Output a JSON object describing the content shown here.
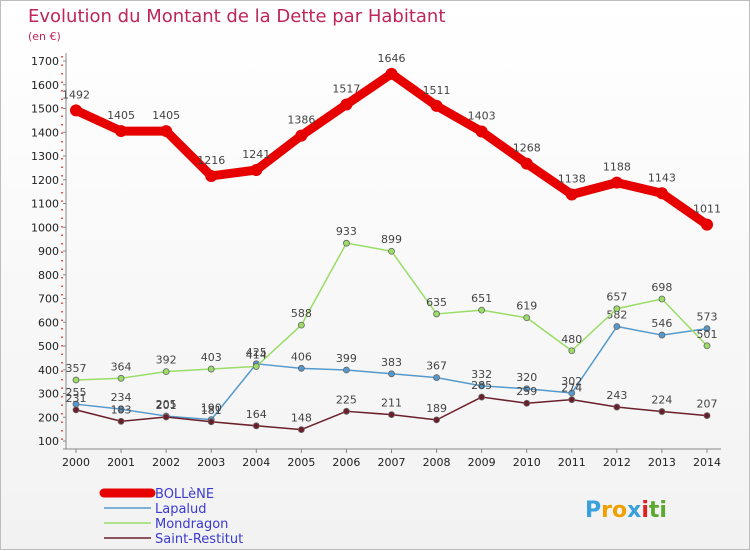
{
  "chart_data": {
    "type": "line",
    "title": "Evolution du Montant de la Dette par Habitant",
    "subtitle": "(en €)",
    "categories": [
      "2000",
      "2001",
      "2002",
      "2003",
      "2004",
      "2005",
      "2006",
      "2007",
      "2008",
      "2009",
      "2010",
      "2011",
      "2012",
      "2013",
      "2014"
    ],
    "ylim": [
      100,
      1700
    ],
    "yticks": [
      100,
      200,
      300,
      400,
      500,
      600,
      700,
      800,
      900,
      1000,
      1100,
      1200,
      1300,
      1400,
      1500,
      1600,
      1700
    ],
    "grid": false,
    "legend_position": "bottom-left",
    "series": [
      {
        "name": "BOLLèNE",
        "color": "#e60000",
        "values": [
          1492,
          1405,
          1405,
          1216,
          1241,
          1386,
          1517,
          1646,
          1511,
          1403,
          1268,
          1138,
          1188,
          1143,
          1011
        ],
        "labels": [
          "1492",
          "1405",
          "1405",
          "1216",
          "1241",
          "1386",
          "1517",
          "1646",
          "1511",
          "1403",
          "1268",
          "1138",
          "1188",
          "1143",
          "1011"
        ]
      },
      {
        "name": "Lapalud",
        "color": "#5599cc",
        "values": [
          255,
          234,
          205,
          190,
          425,
          406,
          399,
          383,
          367,
          332,
          320,
          302,
          582,
          546,
          573
        ],
        "labels": [
          "255",
          "234",
          "205",
          "190",
          "425",
          "406",
          "399",
          "383",
          "367",
          "332",
          "320",
          "302",
          "582",
          "546",
          "573"
        ]
      },
      {
        "name": "Mondragon",
        "color": "#99dd66",
        "values": [
          357,
          364,
          392,
          403,
          414,
          588,
          933,
          899,
          635,
          651,
          619,
          480,
          657,
          698,
          501
        ],
        "labels": [
          "357",
          "364",
          "392",
          "403",
          "414",
          "588",
          "933",
          "899",
          "635",
          "651",
          "619",
          "480",
          "657",
          "698",
          "501"
        ]
      },
      {
        "name": "Saint-Restitut",
        "color": "#6b1f2a",
        "values": [
          231,
          183,
          201,
          181,
          164,
          148,
          225,
          211,
          189,
          285,
          259,
          274,
          243,
          224,
          207
        ],
        "labels": [
          "231",
          "183",
          "201",
          "181",
          "164",
          "148",
          "225",
          "211",
          "189",
          "285",
          "259",
          "274",
          "243",
          "224",
          "207"
        ]
      }
    ]
  },
  "logo": {
    "text": "Proxiti",
    "letters": [
      {
        "char": "P",
        "color": "#3aa0dc"
      },
      {
        "char": "r",
        "color": "#f0a000"
      },
      {
        "char": "o",
        "color": "#f0a000"
      },
      {
        "char": "x",
        "color": "#3aa0dc"
      },
      {
        "char": "i",
        "color": "#e02020"
      },
      {
        "char": "t",
        "color": "#5aaa30"
      },
      {
        "char": "i",
        "color": "#5aaa30"
      }
    ]
  }
}
